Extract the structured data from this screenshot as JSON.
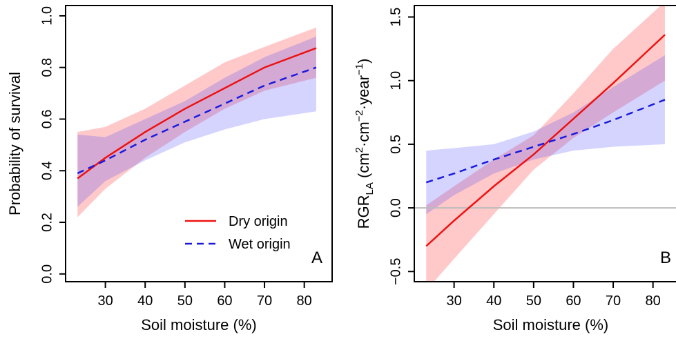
{
  "chart_data": [
    {
      "type": "line",
      "xlabel": "Soil moisture (%)",
      "ylabel": [
        {
          "text": "Probability of survival"
        }
      ],
      "panel_label": "A",
      "legend": "bottom-right",
      "xlim": [
        20,
        87
      ],
      "ylim": [
        -0.03,
        1.04
      ],
      "xticks": [
        30,
        40,
        50,
        60,
        70,
        80
      ],
      "yticks": [
        {
          "value": 0,
          "label": "0.0"
        },
        0.2,
        0.4,
        0.6,
        0.8,
        {
          "value": 1,
          "label": "1.0"
        }
      ],
      "x": [
        23,
        30,
        40,
        50,
        60,
        70,
        83
      ],
      "series": [
        {
          "name": "Dry origin",
          "color": "#ee1111",
          "line_style": "solid",
          "band_color": "rgba(255,60,60,0.28)",
          "values": [
            0.37,
            0.45,
            0.55,
            0.64,
            0.72,
            0.8,
            0.875
          ],
          "lower": [
            0.22,
            0.33,
            0.45,
            0.55,
            0.64,
            0.71,
            0.76
          ],
          "upper": [
            0.55,
            0.57,
            0.64,
            0.73,
            0.82,
            0.88,
            0.955
          ]
        },
        {
          "name": "Wet origin",
          "color": "#1a1add",
          "line_style": "dashed",
          "band_color": "rgba(60,60,255,0.22)",
          "values": [
            0.39,
            0.44,
            0.52,
            0.59,
            0.66,
            0.73,
            0.8
          ],
          "lower": [
            0.26,
            0.36,
            0.44,
            0.51,
            0.56,
            0.6,
            0.63
          ],
          "upper": [
            0.54,
            0.53,
            0.6,
            0.67,
            0.76,
            0.84,
            0.92
          ]
        }
      ]
    },
    {
      "type": "line",
      "xlabel": "Soil moisture (%)",
      "ylabel": [
        {
          "text": "RGR"
        },
        {
          "text": "LA",
          "baseline": "sub"
        },
        {
          "text": " (cm"
        },
        {
          "text": "2",
          "baseline": "super"
        },
        {
          "text": "·cm"
        },
        {
          "text": "−2",
          "baseline": "super"
        },
        {
          "text": "·year"
        },
        {
          "text": "−1",
          "baseline": "super"
        },
        {
          "text": ")"
        }
      ],
      "panel_label": "B",
      "reference_line": 0,
      "xlim": [
        20,
        87
      ],
      "ylim": [
        -0.58,
        1.59
      ],
      "xticks": [
        30,
        40,
        50,
        60,
        70,
        80
      ],
      "yticks": [
        {
          "value": -0.5,
          "label": "−0.5"
        },
        {
          "value": 0,
          "label": "0.0"
        },
        0.5,
        {
          "value": 1,
          "label": "1.0"
        },
        1.5
      ],
      "x": [
        23,
        30,
        40,
        50,
        60,
        70,
        83
      ],
      "series": [
        {
          "color": "#ee1111",
          "line_style": "solid",
          "band_color": "rgba(255,60,60,0.28)",
          "values": [
            -0.3,
            -0.1,
            0.17,
            0.42,
            0.7,
            0.98,
            1.36
          ],
          "lower": [
            -0.65,
            -0.4,
            -0.05,
            0.3,
            0.55,
            0.75,
            1.0
          ],
          "upper": [
            0.02,
            0.17,
            0.38,
            0.57,
            0.9,
            1.25,
            1.62
          ]
        },
        {
          "color": "#1a1add",
          "line_style": "dashed",
          "band_color": "rgba(60,60,255,0.22)",
          "values": [
            0.2,
            0.27,
            0.38,
            0.48,
            0.58,
            0.69,
            0.85
          ],
          "lower": [
            -0.05,
            0.1,
            0.27,
            0.38,
            0.45,
            0.48,
            0.5
          ],
          "upper": [
            0.45,
            0.47,
            0.5,
            0.6,
            0.75,
            0.95,
            1.2
          ]
        }
      ]
    }
  ]
}
